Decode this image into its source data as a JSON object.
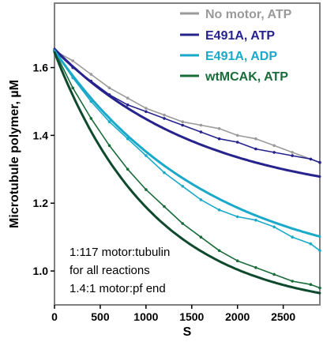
{
  "chart_data": {
    "type": "line",
    "title": "",
    "xlabel": "S",
    "ylabel": "Microtubule polymer, µM",
    "xlim": [
      0,
      2900
    ],
    "ylim": [
      0.9,
      1.79
    ],
    "xticks": [
      0,
      500,
      1000,
      1500,
      2000,
      2500
    ],
    "yticks": [
      1.0,
      1.2,
      1.4,
      1.6
    ],
    "ytick_labels": [
      "1.0",
      "1.2",
      "1.4",
      "1.6"
    ],
    "grid": false,
    "legend_position": "top-right",
    "series": [
      {
        "name": "No motor, ATP",
        "color": "#9a9a9a",
        "points": [
          [
            0,
            1.65
          ],
          [
            200,
            1.62
          ],
          [
            400,
            1.58
          ],
          [
            600,
            1.54
          ],
          [
            800,
            1.51
          ],
          [
            1000,
            1.48
          ],
          [
            1200,
            1.46
          ],
          [
            1400,
            1.44
          ],
          [
            1600,
            1.43
          ],
          [
            1800,
            1.42
          ],
          [
            2000,
            1.4
          ],
          [
            2200,
            1.39
          ],
          [
            2400,
            1.37
          ],
          [
            2600,
            1.35
          ],
          [
            2800,
            1.33
          ],
          [
            2900,
            1.32
          ]
        ]
      },
      {
        "name": "E491A, ATP",
        "color": "#26238c",
        "points": [
          [
            0,
            1.65
          ],
          [
            200,
            1.6
          ],
          [
            400,
            1.56
          ],
          [
            600,
            1.52
          ],
          [
            800,
            1.49
          ],
          [
            1000,
            1.47
          ],
          [
            1200,
            1.45
          ],
          [
            1400,
            1.43
          ],
          [
            1600,
            1.41
          ],
          [
            1800,
            1.39
          ],
          [
            2000,
            1.38
          ],
          [
            2200,
            1.36
          ],
          [
            2400,
            1.35
          ],
          [
            2600,
            1.34
          ],
          [
            2800,
            1.33
          ],
          [
            2900,
            1.32
          ]
        ]
      },
      {
        "name": "E491A, ADP",
        "color": "#1aa9c9",
        "points": [
          [
            0,
            1.65
          ],
          [
            200,
            1.57
          ],
          [
            400,
            1.5
          ],
          [
            600,
            1.44
          ],
          [
            800,
            1.39
          ],
          [
            1000,
            1.34
          ],
          [
            1200,
            1.29
          ],
          [
            1400,
            1.25
          ],
          [
            1600,
            1.21
          ],
          [
            1800,
            1.18
          ],
          [
            2000,
            1.16
          ],
          [
            2200,
            1.15
          ],
          [
            2400,
            1.13
          ],
          [
            2600,
            1.1
          ],
          [
            2800,
            1.08
          ],
          [
            2900,
            1.06
          ]
        ]
      },
      {
        "name": "wtMCAK, ATP",
        "color": "#1a6b3a",
        "points": [
          [
            0,
            1.65
          ],
          [
            200,
            1.54
          ],
          [
            400,
            1.45
          ],
          [
            600,
            1.37
          ],
          [
            800,
            1.3
          ],
          [
            1000,
            1.24
          ],
          [
            1200,
            1.19
          ],
          [
            1400,
            1.14
          ],
          [
            1600,
            1.1
          ],
          [
            1800,
            1.06
          ],
          [
            2000,
            1.03
          ],
          [
            2200,
            1.01
          ],
          [
            2400,
            0.99
          ],
          [
            2600,
            0.97
          ],
          [
            2800,
            0.96
          ],
          [
            2900,
            0.95
          ]
        ]
      }
    ],
    "fits": [
      {
        "name": "E491A, ATP",
        "color": "#26238c",
        "y0": 1.655,
        "yinf": 1.2,
        "tau": 1650
      },
      {
        "name": "E491A, ADP",
        "color": "#1aa9c9",
        "y0": 1.65,
        "yinf": 0.98,
        "tau": 1700
      },
      {
        "name": "wtMCAK, ATP",
        "color": "#0f4a2e",
        "y0": 1.645,
        "yinf": 0.88,
        "tau": 1100
      }
    ],
    "annotations": [
      "1:117 motor:tubulin",
      "for all reactions",
      "1.4:1 motor:pf end"
    ]
  }
}
